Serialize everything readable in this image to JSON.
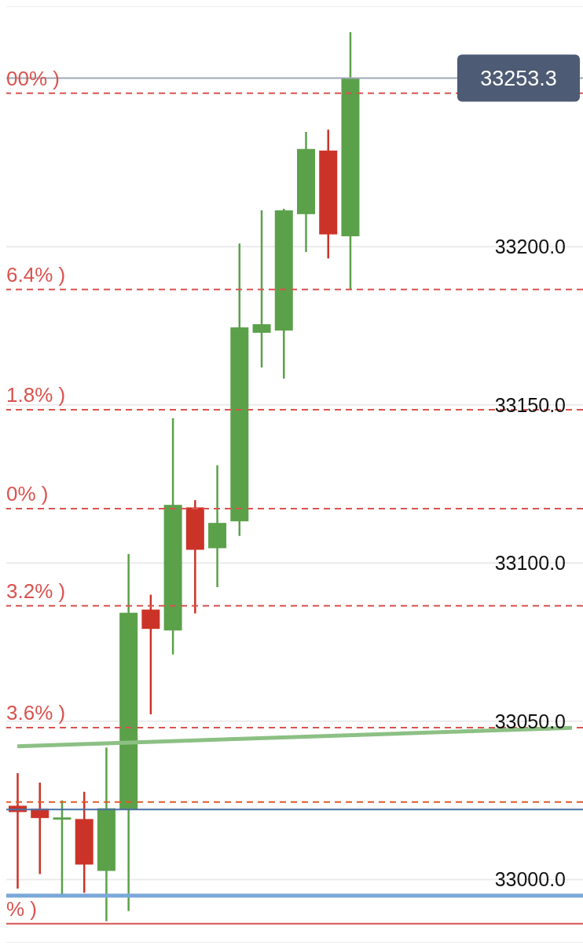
{
  "chart_data": {
    "type": "candlestick",
    "categories": [
      null,
      null,
      null,
      null,
      null,
      null,
      null,
      null,
      null,
      null,
      null,
      null,
      null,
      null,
      null,
      null,
      null,
      null,
      null,
      null,
      null,
      null,
      null,
      null,
      null,
      null
    ],
    "ohlc": [
      [
        33023.3,
        33033.6,
        32997.1,
        33021.3
      ],
      [
        33022.3,
        33030.6,
        33001.7,
        33019.4
      ],
      [
        33018.9,
        33025.0,
        32995.3,
        33019.6
      ],
      [
        33019.1,
        33027.7,
        32995.8,
        33004.7
      ],
      [
        33002.7,
        33041.7,
        32986.8,
        33022.5
      ],
      [
        33022.1,
        33102.9,
        32990.0,
        33084.3
      ],
      [
        33085.3,
        33090.0,
        33052.2,
        33079.2
      ],
      [
        33078.7,
        33145.8,
        33071.1,
        33118.4
      ],
      [
        33117.6,
        33119.9,
        33084.1,
        33104.2
      ],
      [
        33104.7,
        33130.9,
        33092.4,
        33112.7
      ],
      [
        33113.2,
        33201.0,
        33108.6,
        33174.5
      ],
      [
        33172.8,
        33211.5,
        33161.8,
        33175.5
      ],
      [
        33173.5,
        33212.0,
        33158.3,
        33211.5
      ],
      [
        33210.3,
        33236.3,
        33198.3,
        33230.9
      ],
      [
        33230.4,
        33237.0,
        33196.3,
        33203.9
      ],
      [
        33203.3,
        33267.8,
        33186.5,
        33253.3
      ],
      null,
      null,
      null,
      null,
      null,
      null,
      null,
      null,
      null,
      null
    ],
    "colors": [
      "#cc3328",
      "#cc3328",
      "#5ba14a",
      "#cc3328",
      "#5ba14a",
      "#5ba14a",
      "#cc3328",
      "#5ba14a",
      "#cc3328",
      "#5ba14a",
      "#5ba14a",
      "#5ba14a",
      "#5ba14a",
      "#5ba14a",
      "#cc3328",
      "#5ba14a",
      null,
      null,
      null,
      null,
      null,
      null,
      null,
      null,
      null,
      null
    ],
    "series": [
      {
        "type": "line",
        "color": "#8cc084",
        "values": [
          33042.1,
          null,
          null,
          null,
          null,
          null,
          null,
          null,
          null,
          null,
          null,
          null,
          null,
          null,
          null,
          null,
          null,
          null,
          null,
          null,
          null,
          null,
          null,
          null,
          null,
          33047.9
        ]
      }
    ],
    "ylim": [
      32980,
      33276
    ],
    "yticks": [
      {
        "value": 33000,
        "label": "33000.0"
      },
      {
        "value": 33050,
        "label": "33050.0"
      },
      {
        "value": 33100,
        "label": "33100.0"
      },
      {
        "value": 33150,
        "label": "33150.0"
      },
      {
        "value": 33200,
        "label": "33200.0"
      }
    ],
    "grid": "y",
    "tick_labels": "y",
    "ref_lines": [
      {
        "axis": "y",
        "value": 33248.5,
        "color": "#d9534f",
        "line_style": "dashed"
      },
      {
        "axis": "y",
        "value": 33186.5,
        "color": "#d9534f",
        "line_style": "dashed"
      },
      {
        "axis": "y",
        "value": 33148.5,
        "color": "#d9534f",
        "line_style": "dashed"
      },
      {
        "axis": "y",
        "value": 33117.2,
        "color": "#d9534f",
        "line_style": "dashed"
      },
      {
        "axis": "y",
        "value": 33086.5,
        "color": "#d9534f",
        "line_style": "dashed"
      },
      {
        "axis": "y",
        "value": 33048.0,
        "color": "#d9534f",
        "line_style": "dashed"
      },
      {
        "axis": "y",
        "value": 32986.0,
        "color": "#d9534f",
        "line_style": "solid"
      },
      {
        "axis": "y",
        "value": 33253.3,
        "color": "#a0a8b4",
        "line_style": "solid"
      },
      {
        "axis": "y",
        "value": 33024.5,
        "color": "#e05a28",
        "line_style": "dashed"
      },
      {
        "axis": "y",
        "value": 33022.1,
        "color": "#4a6fa5",
        "line_style": "solid"
      },
      {
        "axis": "y",
        "value": 32994.9,
        "color": "#7ba7d9",
        "line_style": "solid"
      }
    ],
    "annotations": [
      {
        "text": "33253.3",
        "y": 33253.3
      },
      {
        "text": "00% )",
        "y": 33248.5
      },
      {
        "text": "6.4% )",
        "y": 33186.5
      },
      {
        "text": "1.8% )",
        "y": 33148.5
      },
      {
        "text": "0% )",
        "y": 33117.2
      },
      {
        "text": "3.2% )",
        "y": 33086.5
      },
      {
        "text": "3.6% )",
        "y": 33048.0
      },
      {
        "text": "% )",
        "y": 32986.0
      }
    ]
  }
}
